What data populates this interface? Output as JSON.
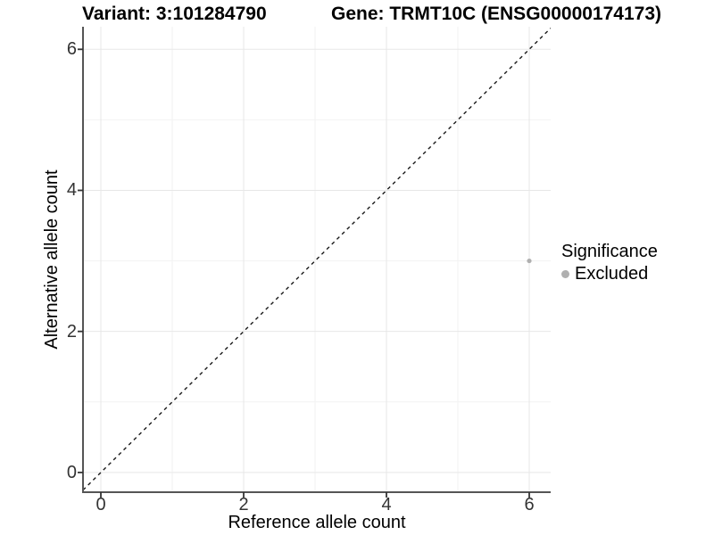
{
  "chart_data": {
    "type": "scatter",
    "titles": {
      "left": "Variant: 3:101284790",
      "right": "Gene: TRMT10C (ENSG00000174173)"
    },
    "xlabel": "Reference allele count",
    "ylabel": "Alternative allele count",
    "xlim": [
      -0.25,
      6.3
    ],
    "ylim": [
      -0.28,
      6.32
    ],
    "x_ticks": [
      0,
      2,
      4,
      6
    ],
    "y_ticks": [
      0,
      2,
      4,
      6
    ],
    "x_minor_ticks": [
      1,
      3,
      5
    ],
    "y_minor_ticks": [
      1,
      3,
      5
    ],
    "grid": true,
    "reference_line": {
      "type": "identity",
      "slope": 1,
      "intercept": 0,
      "style": "dashed"
    },
    "series": [
      {
        "name": "Excluded",
        "color": "#b0b0b0",
        "points": [
          {
            "x": 6,
            "y": 3
          }
        ]
      }
    ],
    "legend": {
      "position": "right",
      "title": "Significance",
      "items": [
        {
          "label": "Excluded",
          "color": "#b0b0b0",
          "marker": "circle-icon"
        }
      ]
    }
  },
  "colors": {
    "background": "#ffffff",
    "axis_line": "#555555",
    "tick_mark": "#333333",
    "tick_label": "#333333",
    "grid_major": "#e7e7e7",
    "grid_minor": "#f2f2f2",
    "reference_line": "#1a1a1a",
    "point": "#b0b0b0"
  }
}
